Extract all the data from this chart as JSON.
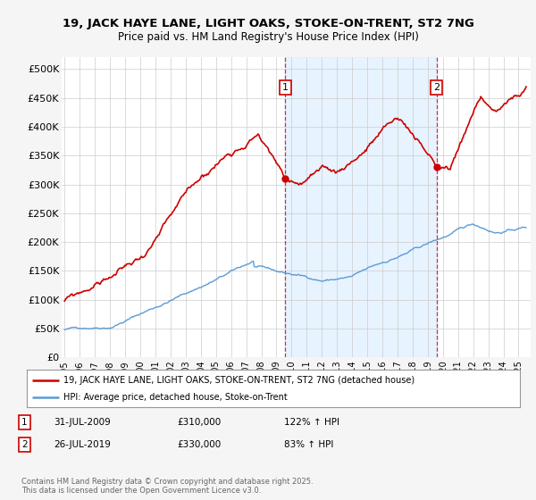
{
  "title_line1": "19, JACK HAYE LANE, LIGHT OAKS, STOKE-ON-TRENT, ST2 7NG",
  "title_line2": "Price paid vs. HM Land Registry's House Price Index (HPI)",
  "yticks": [
    0,
    50000,
    100000,
    150000,
    200000,
    250000,
    300000,
    350000,
    400000,
    450000,
    500000
  ],
  "ytick_labels": [
    "£0",
    "£50K",
    "£100K",
    "£150K",
    "£200K",
    "£250K",
    "£300K",
    "£350K",
    "£400K",
    "£450K",
    "£500K"
  ],
  "ylim": [
    0,
    520000
  ],
  "xlim_start": 1995.0,
  "xlim_end": 2025.8,
  "hpi_color": "#5b9bd5",
  "property_color": "#cc0000",
  "shade_color": "#ddeeff",
  "sale1_x": 2009.58,
  "sale1_y": 310000,
  "sale2_x": 2019.58,
  "sale2_y": 330000,
  "legend_property": "19, JACK HAYE LANE, LIGHT OAKS, STOKE-ON-TRENT, ST2 7NG (detached house)",
  "legend_hpi": "HPI: Average price, detached house, Stoke-on-Trent",
  "annotation1_date": "31-JUL-2009",
  "annotation1_price": "£310,000",
  "annotation1_hpi": "122% ↑ HPI",
  "annotation2_date": "26-JUL-2019",
  "annotation2_price": "£330,000",
  "annotation2_hpi": "83% ↑ HPI",
  "footer": "Contains HM Land Registry data © Crown copyright and database right 2025.\nThis data is licensed under the Open Government Licence v3.0.",
  "bg_color": "#f5f5f5",
  "plot_bg_color": "#ffffff",
  "grid_color": "#cccccc"
}
